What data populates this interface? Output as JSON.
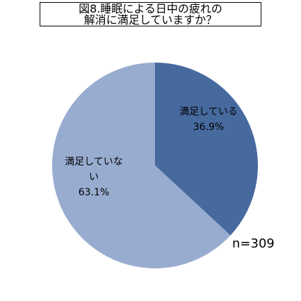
{
  "chart_data": {
    "type": "pie",
    "title": [
      "図8.睡眠による日中の疲れの",
      "解消に満足していますか？"
    ],
    "categories": [
      "満足している",
      "満足していない"
    ],
    "values": [
      36.9,
      63.1
    ],
    "value_labels": [
      "36.9%",
      "63.1%"
    ],
    "colors": [
      "#46699e",
      "#98acd0"
    ],
    "annotation": "n=309"
  }
}
